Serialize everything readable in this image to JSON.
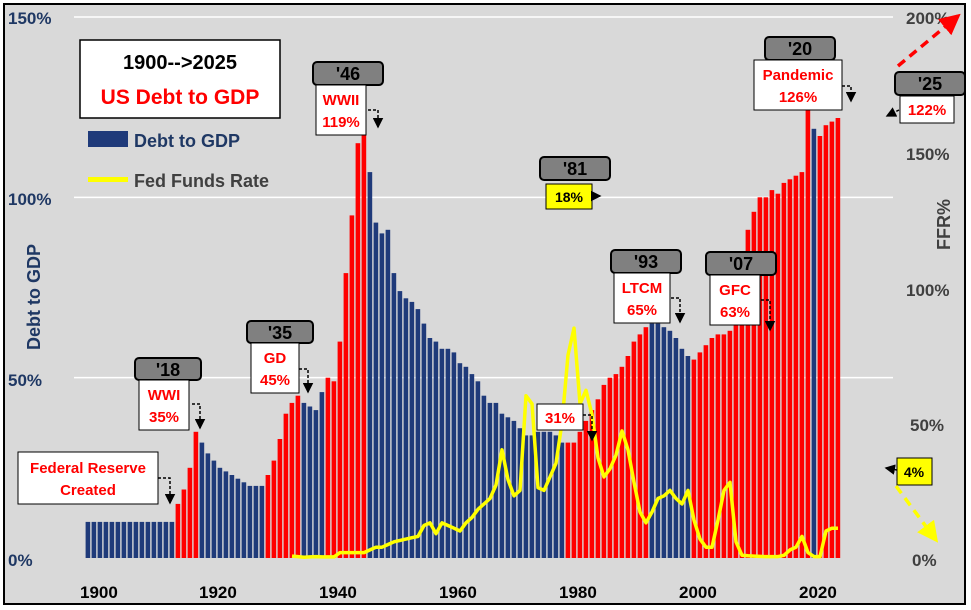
{
  "chart_data": {
    "type": "bar",
    "title": "1900-->2025",
    "subtitle": "US Debt to GDP",
    "ylabel": "Debt to GDP",
    "y2label": "FFR%",
    "ylim": [
      0,
      150
    ],
    "y2lim": [
      0,
      200
    ],
    "yticks": [
      "0%",
      "50%",
      "100%",
      "150%"
    ],
    "y2ticks": [
      "0%",
      "50%",
      "100%",
      "150%",
      "200%"
    ],
    "xticks": [
      "1900",
      "1920",
      "1940",
      "1960",
      "1980",
      "2000",
      "2020"
    ],
    "grid": true,
    "legend_position": "top-left",
    "colors": {
      "bg": "#d9d9d9",
      "navy": "#1f3a7a",
      "red": "#ff0000",
      "ffr": "#ffff00",
      "axis_text": "#1f3864",
      "right_axis_text": "#404040"
    },
    "series": [
      {
        "name": "Debt to GDP",
        "x": [
          1900,
          1901,
          1902,
          1903,
          1904,
          1905,
          1906,
          1907,
          1908,
          1909,
          1910,
          1911,
          1912,
          1913,
          1914,
          1915,
          1916,
          1917,
          1918,
          1919,
          1920,
          1921,
          1922,
          1923,
          1924,
          1925,
          1926,
          1927,
          1928,
          1929,
          1930,
          1931,
          1932,
          1933,
          1934,
          1935,
          1936,
          1937,
          1938,
          1939,
          1940,
          1941,
          1942,
          1943,
          1944,
          1945,
          1946,
          1947,
          1948,
          1949,
          1950,
          1951,
          1952,
          1953,
          1954,
          1955,
          1956,
          1957,
          1958,
          1959,
          1960,
          1961,
          1962,
          1963,
          1964,
          1965,
          1966,
          1967,
          1968,
          1969,
          1970,
          1971,
          1972,
          1973,
          1974,
          1975,
          1976,
          1977,
          1978,
          1979,
          1980,
          1981,
          1982,
          1983,
          1984,
          1985,
          1986,
          1987,
          1988,
          1989,
          1990,
          1991,
          1992,
          1993,
          1994,
          1995,
          1996,
          1997,
          1998,
          1999,
          2000,
          2001,
          2002,
          2003,
          2004,
          2005,
          2006,
          2007,
          2008,
          2009,
          2010,
          2011,
          2012,
          2013,
          2014,
          2015,
          2016,
          2017,
          2018,
          2019,
          2020,
          2021,
          2022,
          2023,
          2024,
          2025
        ],
        "values": [
          10,
          10,
          10,
          10,
          10,
          10,
          10,
          10,
          10,
          10,
          10,
          10,
          10,
          10,
          10,
          15,
          19,
          25,
          35,
          32,
          29,
          27,
          25,
          24,
          23,
          22,
          21,
          20,
          20,
          20,
          23,
          27,
          33,
          40,
          43,
          45,
          43,
          42,
          41,
          46,
          50,
          49,
          60,
          79,
          95,
          115,
          119,
          107,
          93,
          90,
          91,
          79,
          74,
          72,
          71,
          69,
          65,
          61,
          60,
          58,
          58,
          57,
          54,
          53,
          51,
          49,
          45,
          43,
          43,
          40,
          39,
          38,
          36,
          34,
          34,
          35,
          35,
          35,
          34,
          32,
          32,
          32,
          35,
          38,
          41,
          44,
          48,
          50,
          51,
          53,
          56,
          60,
          62,
          64,
          65,
          65,
          64,
          63,
          61,
          58,
          56,
          55,
          57,
          59,
          61,
          62,
          62,
          63,
          68,
          82,
          91,
          96,
          100,
          100,
          102,
          101,
          104,
          105,
          106,
          107,
          126,
          119,
          117,
          120,
          121,
          122
        ],
        "red_years": [
          1915,
          1916,
          1917,
          1918,
          1930,
          1931,
          1932,
          1933,
          1934,
          1935,
          1940,
          1941,
          1942,
          1943,
          1944,
          1945,
          1946,
          1980,
          1981,
          1982,
          1983,
          1984,
          1985,
          1986,
          1987,
          1988,
          1989,
          1990,
          1991,
          1992,
          1993,
          2001,
          2002,
          2003,
          2004,
          2005,
          2006,
          2007,
          2008,
          2009,
          2010,
          2011,
          2012,
          2013,
          2014,
          2015,
          2016,
          2017,
          2018,
          2019,
          2020,
          2022,
          2023,
          2024,
          2025
        ]
      },
      {
        "name": "Fed Funds Rate",
        "x": [
          1934,
          1935,
          1936,
          1937,
          1938,
          1939,
          1940,
          1941,
          1942,
          1943,
          1944,
          1945,
          1946,
          1947,
          1948,
          1949,
          1950,
          1951,
          1952,
          1953,
          1954,
          1955,
          1956,
          1957,
          1958,
          1959,
          1960,
          1961,
          1962,
          1963,
          1964,
          1965,
          1966,
          1967,
          1968,
          1969,
          1970,
          1971,
          1972,
          1973,
          1974,
          1975,
          1976,
          1977,
          1978,
          1979,
          1980,
          1981,
          1982,
          1983,
          1984,
          1985,
          1986,
          1987,
          1988,
          1989,
          1990,
          1991,
          1992,
          1993,
          1994,
          1995,
          1996,
          1997,
          1998,
          1999,
          2000,
          2001,
          2002,
          2003,
          2004,
          2005,
          2006,
          2007,
          2008,
          2009,
          2010,
          2011,
          2012,
          2013,
          2014,
          2015,
          2016,
          2017,
          2018,
          2019,
          2020,
          2021,
          2022,
          2023,
          2024,
          2025
        ],
        "values": [
          0.7,
          0.5,
          0.3,
          0.4,
          0.5,
          0.4,
          0.4,
          0.4,
          2,
          2,
          2,
          2,
          2,
          3,
          4,
          4,
          5,
          6,
          6.5,
          7,
          7.5,
          8,
          12,
          13,
          9,
          13,
          12,
          11,
          10,
          13,
          15,
          18,
          20,
          22,
          27,
          40,
          29,
          23,
          25,
          60,
          57,
          26,
          25,
          30,
          35,
          50,
          75,
          85,
          57,
          62,
          53,
          37,
          30,
          33,
          38,
          47,
          40,
          28,
          17,
          13,
          17,
          22,
          23,
          25,
          22,
          20,
          25,
          14,
          7,
          4,
          4,
          14,
          25,
          28,
          6,
          1,
          0.8,
          0.7,
          0.6,
          0.5,
          0.5,
          0.5,
          1,
          3,
          4,
          8,
          2,
          0.5,
          0.5,
          10,
          11,
          11
        ]
      }
    ],
    "annotations": [
      {
        "year_label": "'18",
        "text": [
          "WWI",
          "35%"
        ]
      },
      {
        "year_label": "'35",
        "text": [
          "GD",
          "45%"
        ]
      },
      {
        "year_label": "'46",
        "text": [
          "WWII",
          "119%"
        ]
      },
      {
        "year_label": "'81",
        "text": [
          "18%"
        ]
      },
      {
        "year_label": "",
        "text": [
          "31%"
        ]
      },
      {
        "year_label": "'93",
        "text": [
          "LTCM",
          "65%"
        ]
      },
      {
        "year_label": "'07",
        "text": [
          "GFC",
          "63%"
        ]
      },
      {
        "year_label": "'20",
        "text": [
          "Pandemic",
          "126%"
        ]
      },
      {
        "year_label": "'25",
        "text": [
          "122%"
        ]
      },
      {
        "year_label": "",
        "text": [
          "4%"
        ]
      },
      {
        "year_label": "",
        "text": [
          "Federal Reserve",
          "Created"
        ]
      }
    ]
  }
}
